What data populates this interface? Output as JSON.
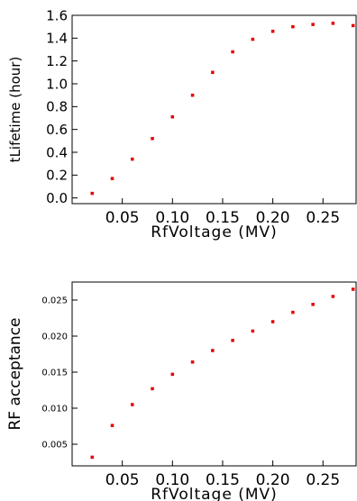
{
  "chart_data": [
    {
      "type": "scatter",
      "title": "",
      "xlabel": "RfVoltage (MV)",
      "ylabel": "tLifetime (hour)",
      "xlim": [
        0.0,
        0.283
      ],
      "ylim": [
        -0.05,
        1.6
      ],
      "xticks": [
        0.05,
        0.1,
        0.15,
        0.2,
        0.25
      ],
      "xtick_labels": [
        "0.05",
        "0.10",
        "0.15",
        "0.20",
        "0.25"
      ],
      "yticks": [
        0.0,
        0.2,
        0.4,
        0.6,
        0.8,
        1.0,
        1.2,
        1.4,
        1.6
      ],
      "ytick_labels": [
        "0.0",
        "0.2",
        "0.4",
        "0.6",
        "0.8",
        "1.0",
        "1.2",
        "1.4",
        "1.6"
      ],
      "point_color": "#e60000",
      "x": [
        0.02,
        0.04,
        0.06,
        0.08,
        0.1,
        0.12,
        0.14,
        0.16,
        0.18,
        0.2,
        0.22,
        0.24,
        0.26,
        0.28
      ],
      "y": [
        0.04,
        0.17,
        0.34,
        0.52,
        0.71,
        0.9,
        1.1,
        1.28,
        1.39,
        1.46,
        1.5,
        1.52,
        1.53,
        1.51
      ]
    },
    {
      "type": "scatter",
      "title": "",
      "xlabel": "RfVoltage (MV)",
      "ylabel": "RF acceptance",
      "xlim": [
        0.0,
        0.283
      ],
      "ylim": [
        0.002,
        0.0275
      ],
      "xticks": [
        0.05,
        0.1,
        0.15,
        0.2,
        0.25
      ],
      "xtick_labels": [
        "0.05",
        "0.10",
        "0.15",
        "0.20",
        "0.25"
      ],
      "yticks": [
        0.005,
        0.01,
        0.015,
        0.02,
        0.025
      ],
      "ytick_labels": [
        "0.005",
        "0.010",
        "0.015",
        "0.020",
        "0.025"
      ],
      "point_color": "#e60000",
      "x": [
        0.02,
        0.04,
        0.06,
        0.08,
        0.1,
        0.12,
        0.14,
        0.16,
        0.18,
        0.2,
        0.22,
        0.24,
        0.26,
        0.28
      ],
      "y": [
        0.0032,
        0.0076,
        0.0105,
        0.0127,
        0.0147,
        0.0164,
        0.018,
        0.0194,
        0.0207,
        0.022,
        0.0233,
        0.0244,
        0.0255,
        0.0265
      ]
    }
  ]
}
